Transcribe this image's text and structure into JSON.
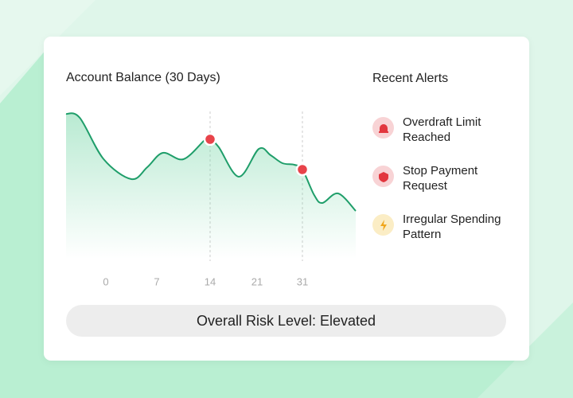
{
  "chart_data": {
    "type": "line",
    "title": "Account Balance (30 Days)",
    "x": [
      -5.5,
      -3.6,
      -0.3,
      3.5,
      5.7,
      7.8,
      10.5,
      13.4,
      14,
      15.3,
      18.3,
      21.4,
      24,
      26.6,
      29.2,
      31,
      33.6,
      35.4,
      38.9,
      42.8
    ],
    "series": [
      {
        "color": "#1f9e6a",
        "values": [
          91,
          88.5,
          62.5,
          50,
          57.5,
          66.5,
          62.5,
          75,
          75,
          70,
          51.5,
          69,
          65,
          60,
          59,
          56,
          40,
          35,
          41,
          30
        ]
      }
    ],
    "highlight_x": [
      14,
      31
    ],
    "highlight_color": "#e8434a",
    "xlim": [
      -5.5,
      42.8
    ],
    "xticks": [
      0,
      7,
      14,
      21,
      31
    ],
    "ylim": [
      0,
      100
    ]
  },
  "alerts": {
    "title": "Recent Alerts",
    "items": [
      {
        "label": "Overdraft Limit Reached",
        "kind": "alarm"
      },
      {
        "label": "Stop Payment Request",
        "kind": "shield"
      },
      {
        "label": "Irregular Spending Pattern",
        "kind": "bolt"
      }
    ]
  },
  "risk": {
    "label": "Overall Risk Level: Elevated"
  }
}
